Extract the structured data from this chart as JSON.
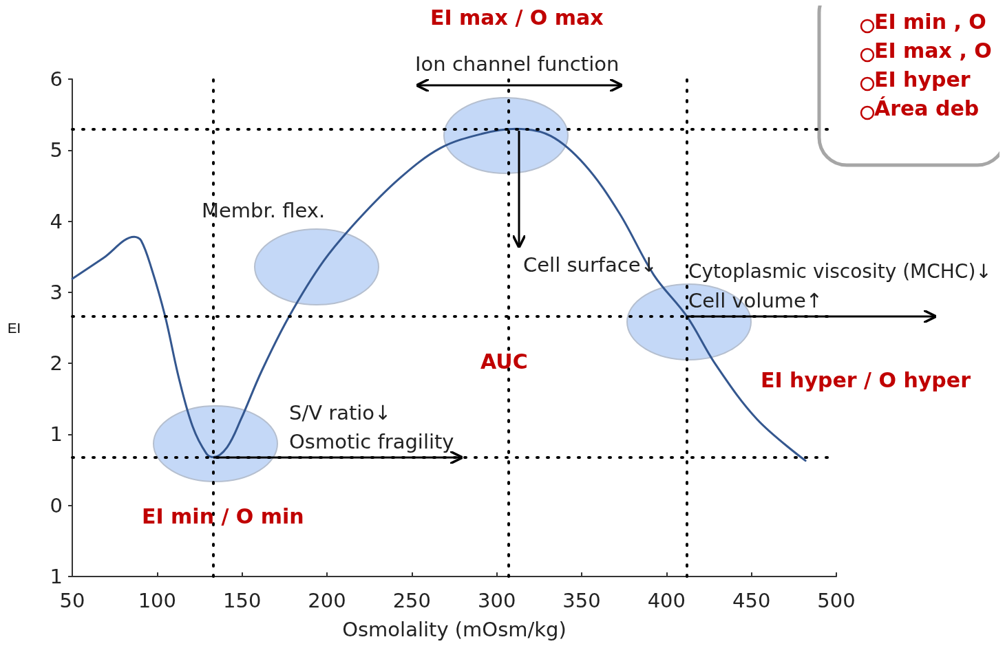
{
  "chart_data": {
    "type": "line",
    "xlabel": "Osmolality (mOsm/kg)",
    "ylabel": "EI",
    "x": [
      50,
      68.2,
      86.5,
      90.5,
      96.6,
      104.7,
      112.8,
      120.9,
      129,
      133.1,
      141.2,
      149.3,
      161.5,
      177.7,
      198,
      218.3,
      242.6,
      266.9,
      291.2,
      311.5,
      331.8,
      352,
      372.3,
      392.6,
      412,
      429,
      453.4,
      481.8
    ],
    "series": [
      {
        "color": "#34578f",
        "values": [
          3.19,
          3.48,
          3.78,
          3.73,
          3.34,
          2.66,
          1.79,
          1.11,
          0.73,
          0.68,
          0.82,
          1.21,
          1.89,
          2.66,
          3.44,
          4.02,
          4.6,
          5.03,
          5.23,
          5.3,
          5.2,
          4.79,
          4.11,
          3.24,
          2.66,
          1.98,
          1.21,
          0.63
        ]
      }
    ],
    "xlim": [
      50,
      500
    ],
    "xticks": [
      50,
      100,
      150,
      200,
      250,
      300,
      350,
      400,
      450,
      500
    ],
    "ylim": [
      -1,
      6
    ],
    "yticks": [
      {
        "value": -1,
        "label": "1"
      },
      0,
      1,
      2,
      3,
      4,
      5,
      6
    ],
    "grid": false,
    "marker": "none",
    "line_style": "solid",
    "ref_lines": [
      {
        "axis": "y",
        "value": 5.3,
        "line_style": "dotted",
        "color": "#000000"
      },
      {
        "axis": "y",
        "value": 2.66,
        "line_style": "dotted",
        "color": "#000000"
      },
      {
        "axis": "y",
        "value": 0.68,
        "line_style": "dotted",
        "color": "#000000"
      },
      {
        "axis": "x",
        "value": 133,
        "line_style": "dotted",
        "color": "#000000"
      },
      {
        "axis": "x",
        "value": 307,
        "line_style": "dotted",
        "color": "#000000"
      },
      {
        "axis": "x",
        "value": 412,
        "line_style": "dotted",
        "color": "#000000"
      }
    ],
    "annotations": [
      "EI max / O max",
      "Ion channel function",
      "Membr. flex.",
      "Cell surface↓",
      "Cytoplasmic viscosity (MCHC)↓",
      "Cell volume↑",
      "AUC",
      "EI hyper / O hyper",
      "S/V ratio↓",
      "Osmotic fragility",
      "EI min / O min",
      "EI min , O",
      "EI max , O",
      "EI hyper",
      "Área deb"
    ]
  }
}
